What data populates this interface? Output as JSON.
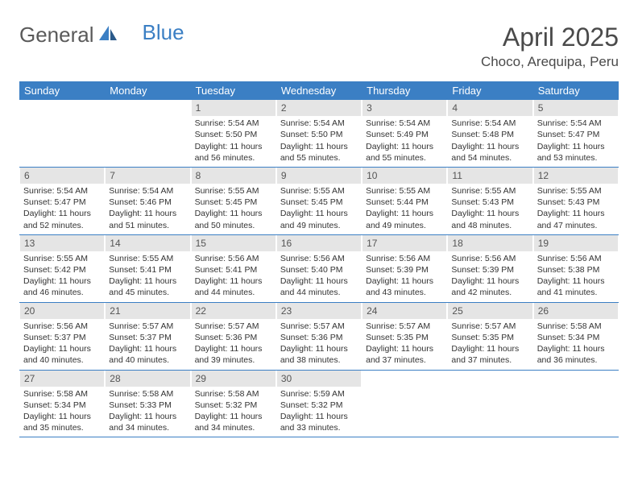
{
  "logo": {
    "part1": "General",
    "part2": "Blue"
  },
  "title": "April 2025",
  "location": "Choco, Arequipa, Peru",
  "colors": {
    "header_bg": "#3b7fc4",
    "header_text": "#ffffff",
    "daynum_bg": "#e5e5e5",
    "text": "#333333",
    "page_bg": "#ffffff"
  },
  "day_headers": [
    "Sunday",
    "Monday",
    "Tuesday",
    "Wednesday",
    "Thursday",
    "Friday",
    "Saturday"
  ],
  "weeks": [
    [
      {
        "n": "",
        "sr": "",
        "ss": "",
        "dl": ""
      },
      {
        "n": "",
        "sr": "",
        "ss": "",
        "dl": ""
      },
      {
        "n": "1",
        "sr": "5:54 AM",
        "ss": "5:50 PM",
        "dl": "11 hours and 56 minutes."
      },
      {
        "n": "2",
        "sr": "5:54 AM",
        "ss": "5:50 PM",
        "dl": "11 hours and 55 minutes."
      },
      {
        "n": "3",
        "sr": "5:54 AM",
        "ss": "5:49 PM",
        "dl": "11 hours and 55 minutes."
      },
      {
        "n": "4",
        "sr": "5:54 AM",
        "ss": "5:48 PM",
        "dl": "11 hours and 54 minutes."
      },
      {
        "n": "5",
        "sr": "5:54 AM",
        "ss": "5:47 PM",
        "dl": "11 hours and 53 minutes."
      }
    ],
    [
      {
        "n": "6",
        "sr": "5:54 AM",
        "ss": "5:47 PM",
        "dl": "11 hours and 52 minutes."
      },
      {
        "n": "7",
        "sr": "5:54 AM",
        "ss": "5:46 PM",
        "dl": "11 hours and 51 minutes."
      },
      {
        "n": "8",
        "sr": "5:55 AM",
        "ss": "5:45 PM",
        "dl": "11 hours and 50 minutes."
      },
      {
        "n": "9",
        "sr": "5:55 AM",
        "ss": "5:45 PM",
        "dl": "11 hours and 49 minutes."
      },
      {
        "n": "10",
        "sr": "5:55 AM",
        "ss": "5:44 PM",
        "dl": "11 hours and 49 minutes."
      },
      {
        "n": "11",
        "sr": "5:55 AM",
        "ss": "5:43 PM",
        "dl": "11 hours and 48 minutes."
      },
      {
        "n": "12",
        "sr": "5:55 AM",
        "ss": "5:43 PM",
        "dl": "11 hours and 47 minutes."
      }
    ],
    [
      {
        "n": "13",
        "sr": "5:55 AM",
        "ss": "5:42 PM",
        "dl": "11 hours and 46 minutes."
      },
      {
        "n": "14",
        "sr": "5:55 AM",
        "ss": "5:41 PM",
        "dl": "11 hours and 45 minutes."
      },
      {
        "n": "15",
        "sr": "5:56 AM",
        "ss": "5:41 PM",
        "dl": "11 hours and 44 minutes."
      },
      {
        "n": "16",
        "sr": "5:56 AM",
        "ss": "5:40 PM",
        "dl": "11 hours and 44 minutes."
      },
      {
        "n": "17",
        "sr": "5:56 AM",
        "ss": "5:39 PM",
        "dl": "11 hours and 43 minutes."
      },
      {
        "n": "18",
        "sr": "5:56 AM",
        "ss": "5:39 PM",
        "dl": "11 hours and 42 minutes."
      },
      {
        "n": "19",
        "sr": "5:56 AM",
        "ss": "5:38 PM",
        "dl": "11 hours and 41 minutes."
      }
    ],
    [
      {
        "n": "20",
        "sr": "5:56 AM",
        "ss": "5:37 PM",
        "dl": "11 hours and 40 minutes."
      },
      {
        "n": "21",
        "sr": "5:57 AM",
        "ss": "5:37 PM",
        "dl": "11 hours and 40 minutes."
      },
      {
        "n": "22",
        "sr": "5:57 AM",
        "ss": "5:36 PM",
        "dl": "11 hours and 39 minutes."
      },
      {
        "n": "23",
        "sr": "5:57 AM",
        "ss": "5:36 PM",
        "dl": "11 hours and 38 minutes."
      },
      {
        "n": "24",
        "sr": "5:57 AM",
        "ss": "5:35 PM",
        "dl": "11 hours and 37 minutes."
      },
      {
        "n": "25",
        "sr": "5:57 AM",
        "ss": "5:35 PM",
        "dl": "11 hours and 37 minutes."
      },
      {
        "n": "26",
        "sr": "5:58 AM",
        "ss": "5:34 PM",
        "dl": "11 hours and 36 minutes."
      }
    ],
    [
      {
        "n": "27",
        "sr": "5:58 AM",
        "ss": "5:34 PM",
        "dl": "11 hours and 35 minutes."
      },
      {
        "n": "28",
        "sr": "5:58 AM",
        "ss": "5:33 PM",
        "dl": "11 hours and 34 minutes."
      },
      {
        "n": "29",
        "sr": "5:58 AM",
        "ss": "5:32 PM",
        "dl": "11 hours and 34 minutes."
      },
      {
        "n": "30",
        "sr": "5:59 AM",
        "ss": "5:32 PM",
        "dl": "11 hours and 33 minutes."
      },
      {
        "n": "",
        "sr": "",
        "ss": "",
        "dl": ""
      },
      {
        "n": "",
        "sr": "",
        "ss": "",
        "dl": ""
      },
      {
        "n": "",
        "sr": "",
        "ss": "",
        "dl": ""
      }
    ]
  ],
  "labels": {
    "sunrise": "Sunrise: ",
    "sunset": "Sunset: ",
    "daylight": "Daylight: "
  }
}
